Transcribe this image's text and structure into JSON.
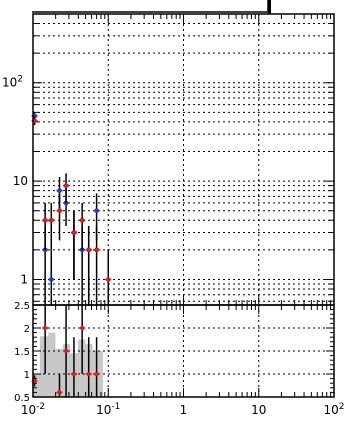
{
  "chart_data": [
    {
      "type": "scatter",
      "panel": "upper",
      "x_scale": "log",
      "y_scale": "log",
      "xlim": [
        0.01,
        100
      ],
      "ylim": [
        0.55,
        500
      ],
      "grid": true,
      "title": "",
      "xlabel": "",
      "ylabel": "",
      "y_tick_labels": [
        "1",
        "10",
        "10^2"
      ],
      "colors": {
        "series_a": "#1f3fd6",
        "series_b": "#e8141a"
      },
      "series": [
        {
          "color_key": "series_a",
          "points": [
            {
              "x": 0.0105,
              "y": 46,
              "err": 4
            },
            {
              "x": 0.0145,
              "y": 2,
              "err": 1.5
            },
            {
              "x": 0.0175,
              "y": 1,
              "err": 1.0
            },
            {
              "x": 0.0225,
              "y": 8,
              "err": 3
            },
            {
              "x": 0.0275,
              "y": 6,
              "err": 2.5
            },
            {
              "x": 0.035,
              "y": 3,
              "err": 2
            },
            {
              "x": 0.045,
              "y": 2,
              "err": 1.5
            },
            {
              "x": 0.055,
              "y": 2,
              "err": 1.5
            },
            {
              "x": 0.07,
              "y": 5,
              "err": 2.5
            }
          ]
        },
        {
          "color_key": "series_b",
          "points": [
            {
              "x": 0.0105,
              "y": 41,
              "err": 4
            },
            {
              "x": 0.0145,
              "y": 4,
              "err": 2
            },
            {
              "x": 0.0175,
              "y": 4,
              "err": 2
            },
            {
              "x": 0.0225,
              "y": 5,
              "err": 2.5
            },
            {
              "x": 0.0275,
              "y": 9,
              "err": 3
            },
            {
              "x": 0.035,
              "y": 3,
              "err": 2
            },
            {
              "x": 0.045,
              "y": 4,
              "err": 2
            },
            {
              "x": 0.055,
              "y": 2,
              "err": 1.5
            },
            {
              "x": 0.07,
              "y": 2,
              "err": 1.5
            },
            {
              "x": 0.1,
              "y": 1,
              "err": 1.0
            }
          ]
        }
      ]
    },
    {
      "type": "scatter",
      "panel": "ratio",
      "x_scale": "log",
      "y_scale": "linear",
      "xlim": [
        0.01,
        100
      ],
      "ylim": [
        0.5,
        2.5
      ],
      "grid": true,
      "title": "",
      "xlabel": "",
      "ylabel": "",
      "x_tick_labels": [
        "10^-2",
        "10^-1",
        "1",
        "10",
        "10^2"
      ],
      "y_tick_labels": [
        "0.5",
        "1",
        "1.5",
        "2",
        "2.5"
      ],
      "colors": {
        "band": "#c8c8c8",
        "points": "#e8141a"
      },
      "band": {
        "x": [
          0.0105,
          0.0145,
          0.0175,
          0.0225,
          0.0275,
          0.035,
          0.045,
          0.055,
          0.07
        ],
        "y": [
          1.0,
          1.82,
          1.9,
          1.55,
          1.65,
          1.45,
          1.75,
          1.65,
          1.5
        ]
      },
      "points": [
        {
          "x": 0.0105,
          "y": 0.85,
          "err": 0.12
        },
        {
          "x": 0.0145,
          "y": 2.0,
          "err": 1.0
        },
        {
          "x": 0.0225,
          "y": 0.6,
          "err": 0.4
        },
        {
          "x": 0.0275,
          "y": 1.5,
          "err": 1.0
        },
        {
          "x": 0.035,
          "y": 1.0,
          "err": 0.8
        },
        {
          "x": 0.045,
          "y": 2.0,
          "err": 1.0
        },
        {
          "x": 0.055,
          "y": 1.0,
          "err": 0.8
        },
        {
          "x": 0.07,
          "y": 1.0,
          "err": 0.8
        }
      ]
    }
  ]
}
